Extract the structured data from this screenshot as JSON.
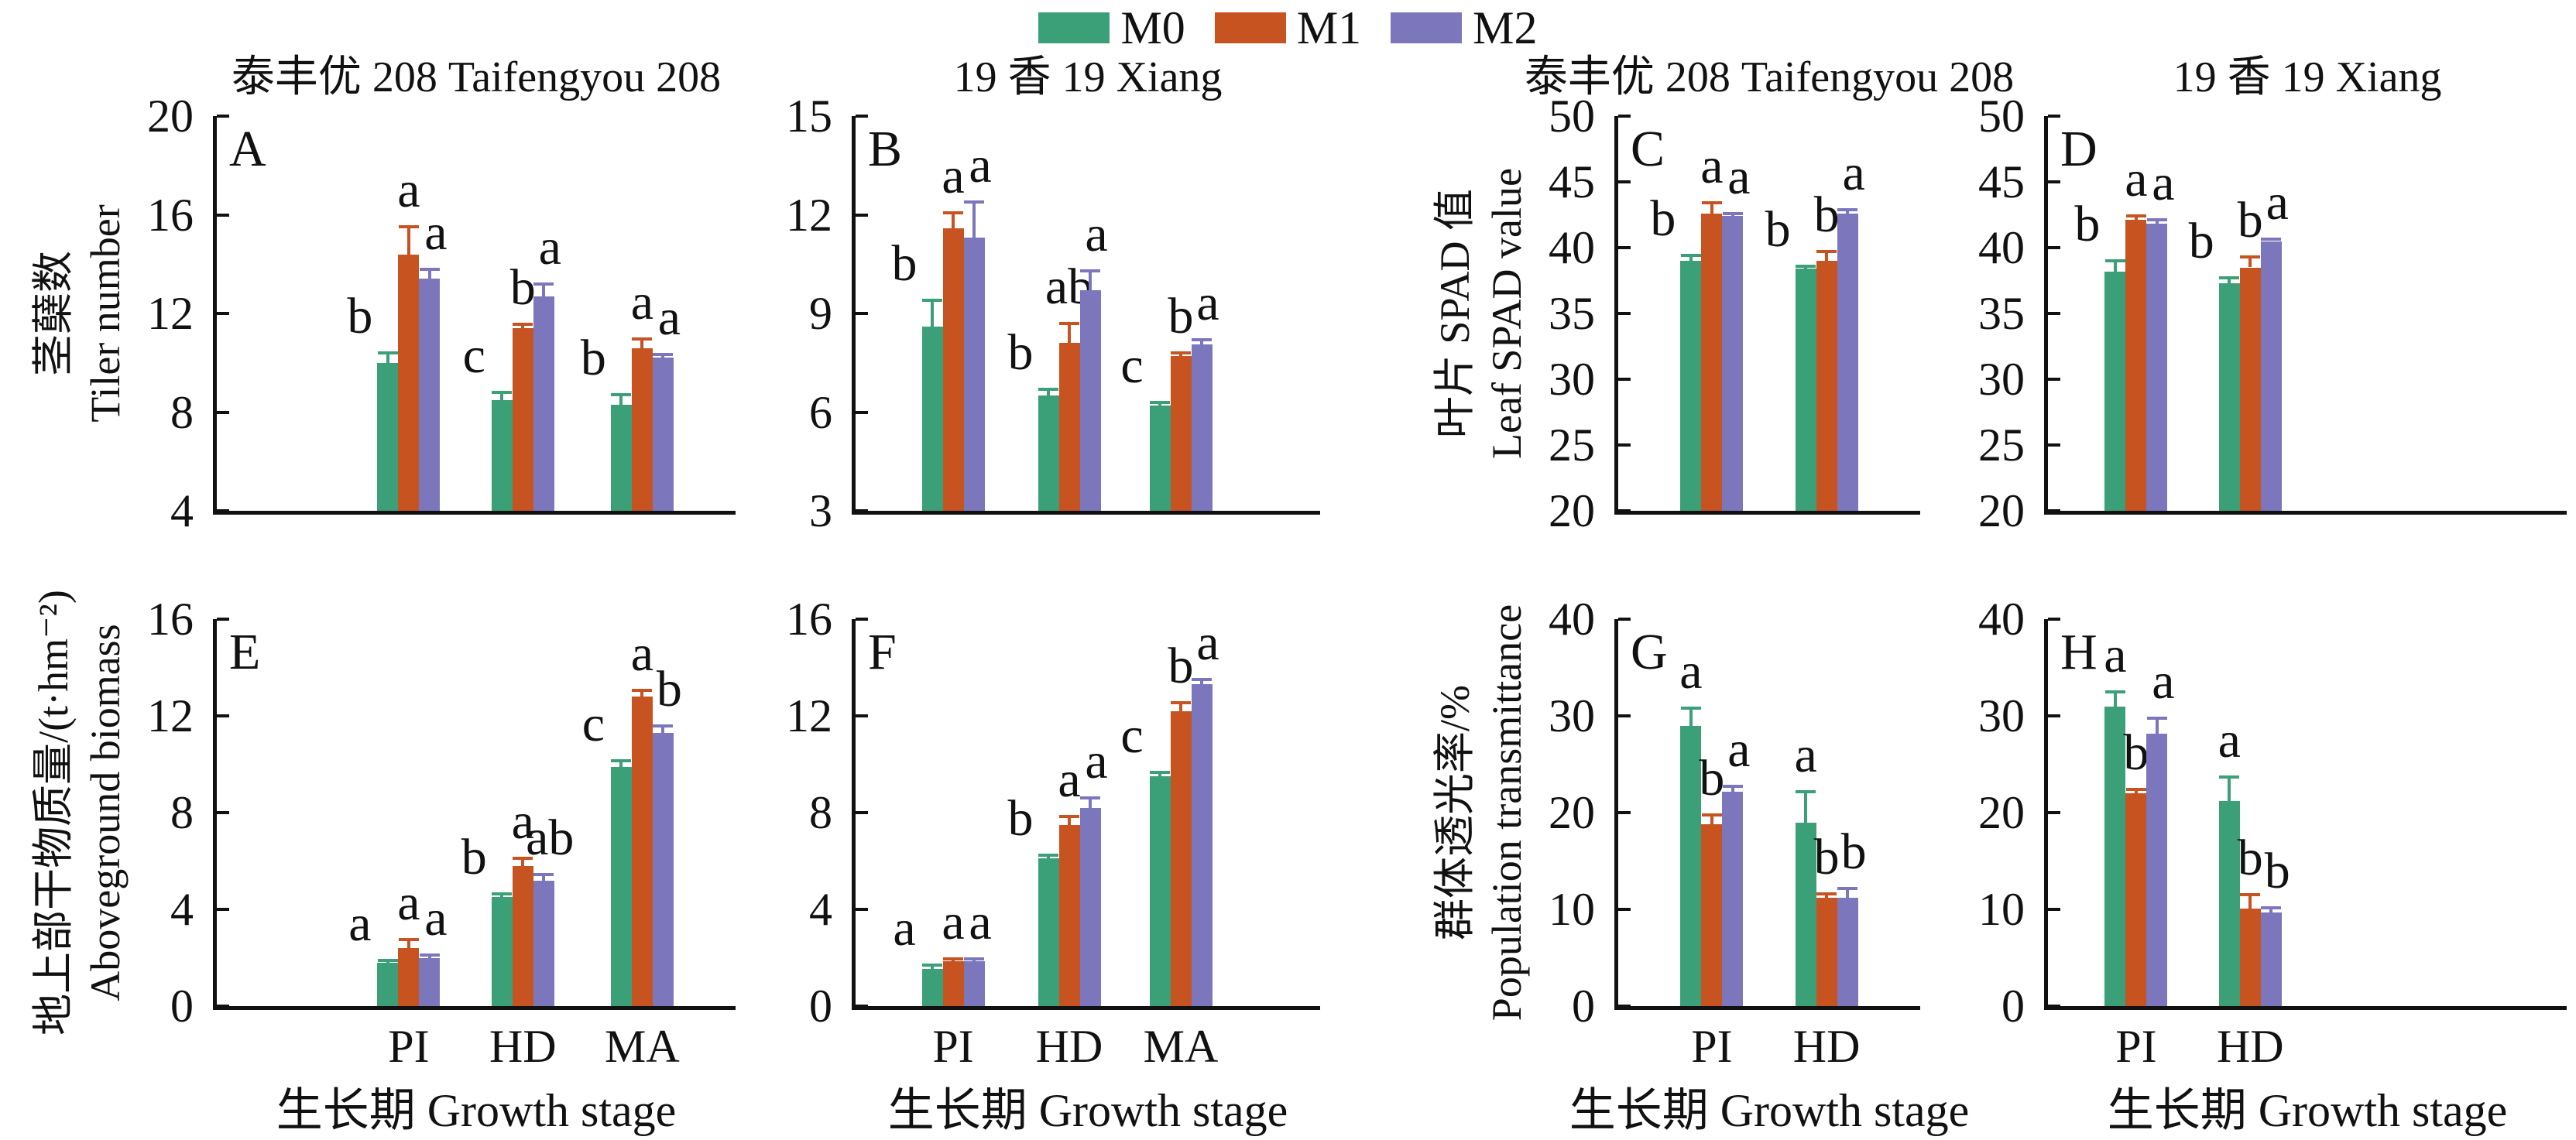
{
  "legend": {
    "items": [
      {
        "label": "M0",
        "color": "#3BA078"
      },
      {
        "label": "M1",
        "color": "#C75320"
      },
      {
        "label": "M2",
        "color": "#7C76BD"
      }
    ]
  },
  "axis_color": "#111111",
  "xaxis_title": "生长期 Growth stage",
  "chart_data": [
    {
      "panel": "A",
      "type": "bar",
      "title": "泰丰优 208 Taifengyou 208",
      "ylabel_zh": "茎蘖数",
      "ylabel_en": "Tiler number",
      "ylim": [
        4,
        20
      ],
      "yticks": [
        4,
        8,
        12,
        16,
        20
      ],
      "categories": [
        "PI",
        "HD",
        "MA"
      ],
      "show_title": true,
      "show_xticklabels": false,
      "xlabel": "",
      "series": [
        {
          "name": "M0",
          "values": [
            10.0,
            8.5,
            8.3
          ],
          "errors": [
            0.4,
            0.3,
            0.4
          ],
          "letters": [
            "b",
            "c",
            "b"
          ]
        },
        {
          "name": "M1",
          "values": [
            14.4,
            11.4,
            10.6
          ],
          "errors": [
            1.1,
            0.15,
            0.35
          ],
          "letters": [
            "a",
            "b",
            "a"
          ]
        },
        {
          "name": "M2",
          "values": [
            13.4,
            12.7,
            10.2
          ],
          "errors": [
            0.4,
            0.5,
            0.15
          ],
          "letters": [
            "a",
            "a",
            "a"
          ]
        }
      ]
    },
    {
      "panel": "B",
      "type": "bar",
      "title": "19 香 19 Xiang",
      "ylabel_zh": "",
      "ylabel_en": "",
      "ylim": [
        3,
        15
      ],
      "yticks": [
        3,
        6,
        9,
        12,
        15
      ],
      "categories": [
        "PI",
        "HD",
        "MA"
      ],
      "show_title": true,
      "show_xticklabels": false,
      "xlabel": "",
      "series": [
        {
          "name": "M0",
          "values": [
            8.6,
            6.5,
            6.2
          ],
          "errors": [
            0.8,
            0.2,
            0.1
          ],
          "letters": [
            "b",
            "b",
            "c"
          ]
        },
        {
          "name": "M1",
          "values": [
            11.6,
            8.1,
            7.7
          ],
          "errors": [
            0.45,
            0.6,
            0.1
          ],
          "letters": [
            "a",
            "ab",
            "b"
          ]
        },
        {
          "name": "M2",
          "values": [
            11.3,
            9.7,
            8.05
          ],
          "errors": [
            1.1,
            0.6,
            0.15
          ],
          "letters": [
            "a",
            "a",
            "a"
          ]
        }
      ]
    },
    {
      "panel": "C",
      "type": "bar",
      "title": "泰丰优 208 Taifengyou 208",
      "ylabel_zh": "叶片 SPAD 值",
      "ylabel_en": "Leaf SPAD value",
      "ylim": [
        20,
        50
      ],
      "yticks": [
        20,
        25,
        30,
        35,
        40,
        45,
        50
      ],
      "categories": [
        "PI",
        "HD"
      ],
      "show_title": true,
      "show_xticklabels": false,
      "xlabel": "",
      "series": [
        {
          "name": "M0",
          "values": [
            39.0,
            38.4
          ],
          "errors": [
            0.4,
            0.2
          ],
          "letters": [
            "b",
            "b"
          ]
        },
        {
          "name": "M1",
          "values": [
            42.6,
            39.0
          ],
          "errors": [
            0.8,
            0.7
          ],
          "letters": [
            "a",
            "b"
          ]
        },
        {
          "name": "M2",
          "values": [
            42.4,
            42.6
          ],
          "errors": [
            0.2,
            0.3
          ],
          "letters": [
            "a",
            "a"
          ]
        }
      ]
    },
    {
      "panel": "D",
      "type": "bar",
      "title": "19 香 19 Xiang",
      "ylabel_zh": "",
      "ylabel_en": "",
      "ylim": [
        20,
        50
      ],
      "yticks": [
        20,
        25,
        30,
        35,
        40,
        45,
        50
      ],
      "categories": [
        "PI",
        "HD"
      ],
      "show_title": true,
      "show_xticklabels": false,
      "xlabel": "",
      "series": [
        {
          "name": "M0",
          "values": [
            38.2,
            37.3
          ],
          "errors": [
            0.8,
            0.4
          ],
          "letters": [
            "b",
            "b"
          ]
        },
        {
          "name": "M1",
          "values": [
            42.1,
            38.5
          ],
          "errors": [
            0.3,
            0.8
          ],
          "letters": [
            "a",
            "b"
          ]
        },
        {
          "name": "M2",
          "values": [
            41.8,
            40.5
          ],
          "errors": [
            0.3,
            0.15
          ],
          "letters": [
            "a",
            "a"
          ]
        }
      ]
    },
    {
      "panel": "E",
      "type": "bar",
      "title": "",
      "ylabel_zh": "地上部干物质量/(t·hm⁻²)",
      "ylabel_en": "Aboveground biomass",
      "ylim": [
        0,
        16
      ],
      "yticks": [
        0,
        4,
        8,
        12,
        16
      ],
      "categories": [
        "PI",
        "HD",
        "MA"
      ],
      "show_title": false,
      "show_xticklabels": true,
      "xlabel": "生长期 Growth stage",
      "series": [
        {
          "name": "M0",
          "values": [
            1.8,
            4.5,
            9.9
          ],
          "errors": [
            0.1,
            0.15,
            0.25
          ],
          "letters": [
            "a",
            "b",
            "c"
          ]
        },
        {
          "name": "M1",
          "values": [
            2.4,
            5.8,
            12.8
          ],
          "errors": [
            0.35,
            0.3,
            0.25
          ],
          "letters": [
            "a",
            "a",
            "a"
          ]
        },
        {
          "name": "M2",
          "values": [
            2.0,
            5.2,
            11.3
          ],
          "errors": [
            0.1,
            0.25,
            0.3
          ],
          "letters": [
            "a",
            "ab",
            "b"
          ]
        }
      ]
    },
    {
      "panel": "F",
      "type": "bar",
      "title": "",
      "ylabel_zh": "",
      "ylabel_en": "",
      "ylim": [
        0,
        16
      ],
      "yticks": [
        0,
        4,
        8,
        12,
        16
      ],
      "categories": [
        "PI",
        "HD",
        "MA"
      ],
      "show_title": false,
      "show_xticklabels": true,
      "xlabel": "生长期 Growth stage",
      "series": [
        {
          "name": "M0",
          "values": [
            1.55,
            6.1,
            9.5
          ],
          "errors": [
            0.15,
            0.15,
            0.15
          ],
          "letters": [
            "a",
            "b",
            "c"
          ]
        },
        {
          "name": "M1",
          "values": [
            1.85,
            7.5,
            12.2
          ],
          "errors": [
            0.1,
            0.35,
            0.35
          ],
          "letters": [
            "a",
            "a",
            "b"
          ]
        },
        {
          "name": "M2",
          "values": [
            1.85,
            8.2,
            13.3
          ],
          "errors": [
            0.1,
            0.4,
            0.2
          ],
          "letters": [
            "a",
            "a",
            "a"
          ]
        }
      ]
    },
    {
      "panel": "G",
      "type": "bar",
      "title": "",
      "ylabel_zh": "群体透光率/%",
      "ylabel_en": "Population transmittance",
      "ylim": [
        0,
        40
      ],
      "yticks": [
        0,
        10,
        20,
        30,
        40
      ],
      "categories": [
        "PI",
        "HD"
      ],
      "show_title": false,
      "show_xticklabels": true,
      "xlabel": "生长期 Growth stage",
      "series": [
        {
          "name": "M0",
          "values": [
            29.0,
            19.0
          ],
          "errors": [
            1.8,
            3.2
          ],
          "letters": [
            "a",
            "a"
          ]
        },
        {
          "name": "M1",
          "values": [
            18.8,
            11.2
          ],
          "errors": [
            1.0,
            0.4
          ],
          "letters": [
            "b",
            "b"
          ]
        },
        {
          "name": "M2",
          "values": [
            22.2,
            11.2
          ],
          "errors": [
            0.5,
            1.0
          ],
          "letters": [
            "a",
            "b"
          ]
        }
      ]
    },
    {
      "panel": "H",
      "type": "bar",
      "title": "",
      "ylabel_zh": "",
      "ylabel_en": "",
      "ylim": [
        0,
        40
      ],
      "yticks": [
        0,
        10,
        20,
        30,
        40
      ],
      "categories": [
        "PI",
        "HD"
      ],
      "show_title": false,
      "show_xticklabels": true,
      "xlabel": "生长期 Growth stage",
      "series": [
        {
          "name": "M0",
          "values": [
            31.0,
            21.2
          ],
          "errors": [
            1.5,
            2.5
          ],
          "letters": [
            "a",
            "a"
          ]
        },
        {
          "name": "M1",
          "values": [
            22.0,
            10.1
          ],
          "errors": [
            0.4,
            1.4
          ],
          "letters": [
            "b",
            "b"
          ]
        },
        {
          "name": "M2",
          "values": [
            28.2,
            9.7
          ],
          "errors": [
            1.6,
            0.5
          ],
          "letters": [
            "a",
            "b"
          ]
        }
      ]
    }
  ]
}
